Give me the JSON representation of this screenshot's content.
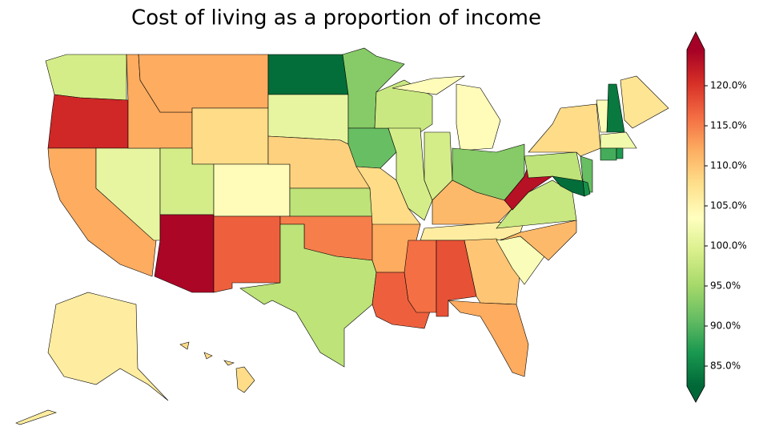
{
  "chart_data": {
    "type": "choropleth",
    "title": "Cost of living as a proportion of income",
    "values": [
      99,
      121,
      112,
      101,
      112,
      112,
      108,
      99,
      104,
      124,
      117,
      83,
      101,
      109,
      97,
      115,
      97,
      93,
      91,
      108,
      112,
      117,
      98,
      99,
      104,
      99,
      93,
      111,
      106,
      116,
      118,
      110,
      112,
      103,
      111,
      98,
      123,
      97,
      108,
      107,
      104,
      84,
      102,
      89,
      87,
      91,
      86,
      83,
      106,
      108
    ],
    "colorscale": [
      "#006837",
      "#1a9850",
      "#66bd63",
      "#a6d96a",
      "#d9ef8b",
      "#ffffbf",
      "#fee08b",
      "#fdae61",
      "#f46d43",
      "#d73027",
      "#a50026"
    ],
    "vlim": [
      82.5,
      124.5
    ],
    "ticks": [
      {
        "value": 85,
        "label": "85.0%"
      },
      {
        "value": 90,
        "label": "90.0%"
      },
      {
        "value": 95,
        "label": "95.0%"
      },
      {
        "value": 100,
        "label": "100.0%"
      },
      {
        "value": 105,
        "label": "105.0%"
      },
      {
        "value": 110,
        "label": "110.0%"
      },
      {
        "value": 115,
        "label": "115.0%"
      },
      {
        "value": 120,
        "label": "120.0%"
      }
    ]
  }
}
